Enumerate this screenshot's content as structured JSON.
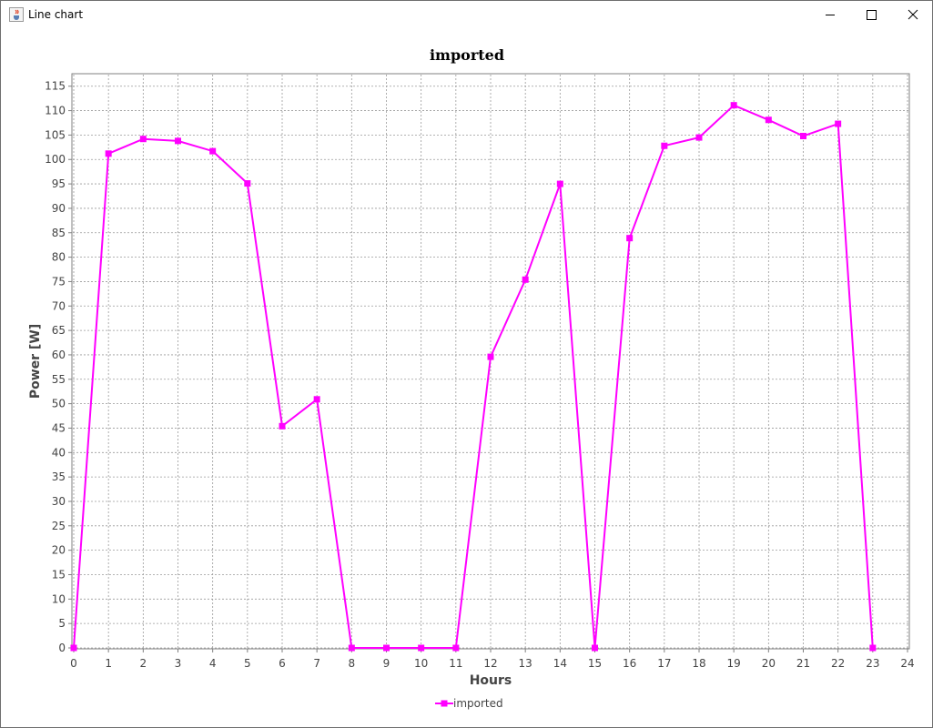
{
  "window": {
    "title": "Line chart",
    "icon": "java-cup-icon",
    "buttons": [
      "minimize-icon",
      "maximize-icon",
      "close-icon"
    ]
  },
  "chart_data": {
    "type": "line",
    "title": "imported",
    "xlabel": "Hours",
    "ylabel": "Power [W]",
    "xlim": [
      0,
      24
    ],
    "ylim": [
      0,
      117
    ],
    "x_ticks": [
      0,
      1,
      2,
      3,
      4,
      5,
      6,
      7,
      8,
      9,
      10,
      11,
      12,
      13,
      14,
      15,
      16,
      17,
      18,
      19,
      20,
      21,
      22,
      23,
      24
    ],
    "y_ticks": [
      0,
      5,
      10,
      15,
      20,
      25,
      30,
      35,
      40,
      45,
      50,
      55,
      60,
      65,
      70,
      75,
      80,
      85,
      90,
      95,
      100,
      105,
      110,
      115
    ],
    "grid": true,
    "legend_position": "bottom",
    "series": [
      {
        "name": "imported",
        "color": "#ff00ff",
        "marker": "square",
        "x": [
          0,
          1,
          2,
          3,
          4,
          5,
          6,
          7,
          8,
          9,
          10,
          11,
          12,
          13,
          14,
          15,
          16,
          17,
          18,
          19,
          20,
          21,
          22,
          23
        ],
        "values": [
          0,
          101.2,
          104.2,
          103.8,
          101.7,
          95.1,
          45.4,
          50.9,
          0,
          0,
          0,
          0,
          59.6,
          75.4,
          95,
          0,
          83.9,
          102.8,
          104.5,
          111.1,
          108.1,
          104.8,
          107.3,
          0
        ]
      }
    ]
  }
}
